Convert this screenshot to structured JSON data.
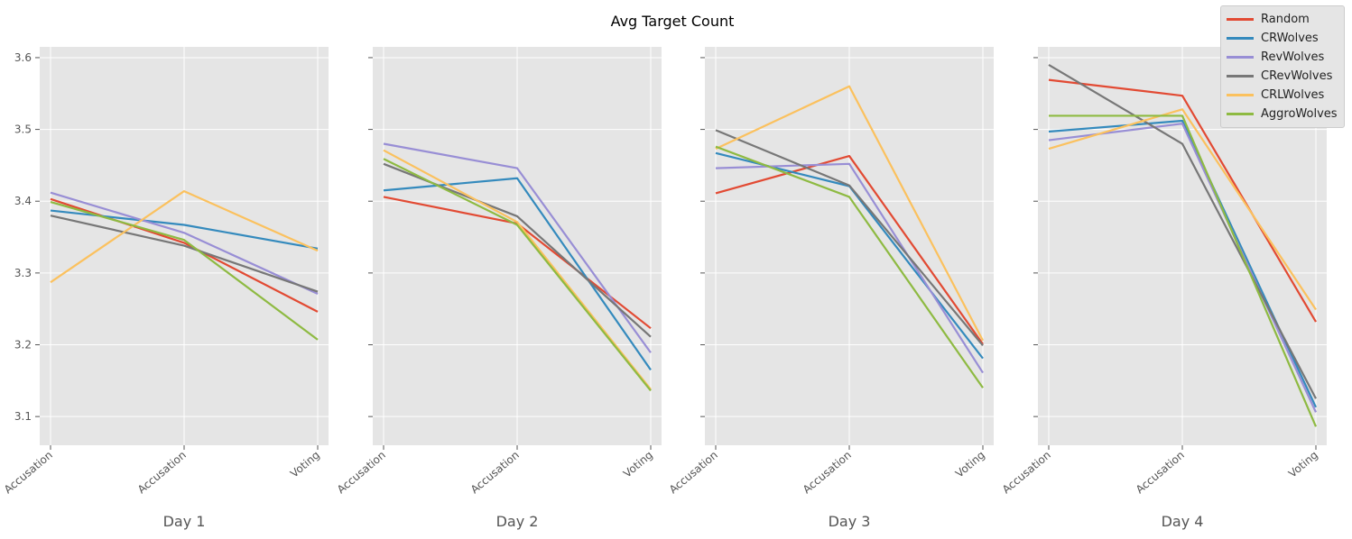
{
  "chart_data": {
    "type": "line",
    "title": "Avg Target Count",
    "ylim": [
      3.06,
      3.615
    ],
    "yticks": [
      "3.1",
      "3.2",
      "3.3",
      "3.4",
      "3.5",
      "3.6"
    ],
    "categories": [
      "Accusation",
      "Accusation",
      "Voting"
    ],
    "legend_position": "top-right",
    "grid": true,
    "series_meta": [
      {
        "name": "Random",
        "color": "#E24A33"
      },
      {
        "name": "CRWolves",
        "color": "#348ABD"
      },
      {
        "name": "RevWolves",
        "color": "#988ED5"
      },
      {
        "name": "CRevWolves",
        "color": "#777777"
      },
      {
        "name": "CRLWolves",
        "color": "#FBC15E"
      },
      {
        "name": "AggroWolves",
        "color": "#8EBA42"
      }
    ],
    "panels": [
      {
        "xlabel": "Day 1",
        "series": [
          {
            "name": "Random",
            "values": [
              3.403,
              3.342,
              3.246
            ]
          },
          {
            "name": "CRWolves",
            "values": [
              3.387,
              3.367,
              3.334
            ]
          },
          {
            "name": "RevWolves",
            "values": [
              3.412,
              3.356,
              3.271
            ]
          },
          {
            "name": "CRevWolves",
            "values": [
              3.38,
              3.338,
              3.274
            ]
          },
          {
            "name": "CRLWolves",
            "values": [
              3.287,
              3.414,
              3.331
            ]
          },
          {
            "name": "AggroWolves",
            "values": [
              3.399,
              3.346,
              3.207
            ]
          }
        ]
      },
      {
        "xlabel": "Day 2",
        "series": [
          {
            "name": "Random",
            "values": [
              3.406,
              3.369,
              3.223
            ]
          },
          {
            "name": "CRWolves",
            "values": [
              3.415,
              3.432,
              3.165
            ]
          },
          {
            "name": "RevWolves",
            "values": [
              3.48,
              3.446,
              3.189
            ]
          },
          {
            "name": "CRevWolves",
            "values": [
              3.452,
              3.379,
              3.211
            ]
          },
          {
            "name": "CRLWolves",
            "values": [
              3.471,
              3.371,
              3.138
            ]
          },
          {
            "name": "AggroWolves",
            "values": [
              3.459,
              3.367,
              3.136
            ]
          }
        ]
      },
      {
        "xlabel": "Day 3",
        "series": [
          {
            "name": "Random",
            "values": [
              3.411,
              3.463,
              3.201
            ]
          },
          {
            "name": "CRWolves",
            "values": [
              3.467,
              3.421,
              3.181
            ]
          },
          {
            "name": "RevWolves",
            "values": [
              3.446,
              3.452,
              3.161
            ]
          },
          {
            "name": "CRevWolves",
            "values": [
              3.499,
              3.422,
              3.199
            ]
          },
          {
            "name": "CRLWolves",
            "values": [
              3.473,
              3.56,
              3.206
            ]
          },
          {
            "name": "AggroWolves",
            "values": [
              3.476,
              3.406,
              3.14
            ]
          }
        ]
      },
      {
        "xlabel": "Day 4",
        "series": [
          {
            "name": "Random",
            "values": [
              3.569,
              3.547,
              3.232
            ]
          },
          {
            "name": "CRWolves",
            "values": [
              3.497,
              3.512,
              3.113
            ]
          },
          {
            "name": "RevWolves",
            "values": [
              3.485,
              3.508,
              3.106
            ]
          },
          {
            "name": "CRevWolves",
            "values": [
              3.59,
              3.48,
              3.125
            ]
          },
          {
            "name": "CRLWolves",
            "values": [
              3.473,
              3.528,
              3.249
            ]
          },
          {
            "name": "AggroWolves",
            "values": [
              3.519,
              3.519,
              3.086
            ]
          }
        ]
      }
    ]
  }
}
